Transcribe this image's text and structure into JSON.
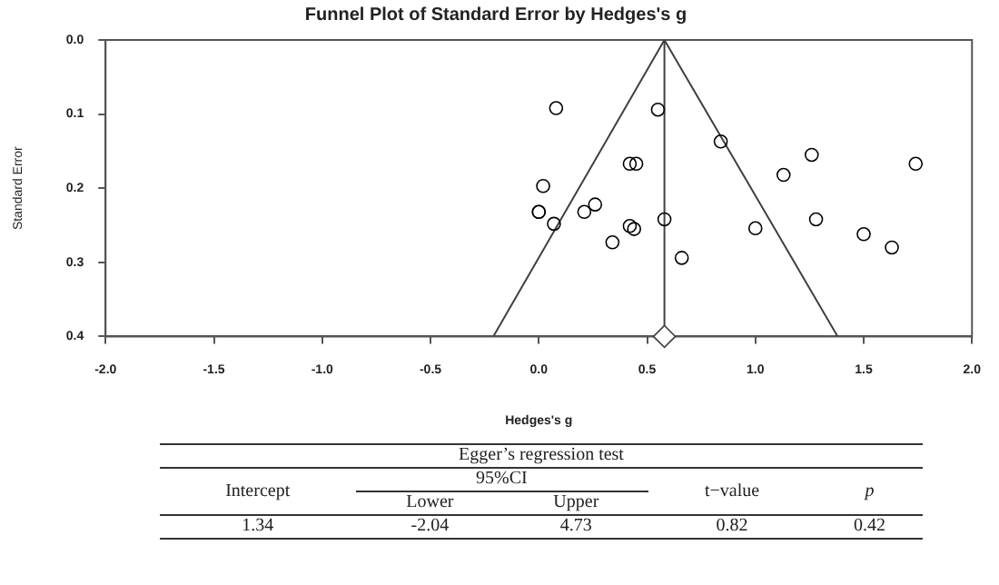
{
  "chart_data": {
    "type": "scatter",
    "title": "Funnel Plot of Standard Error by Hedges's g",
    "xlabel": "Hedges's g",
    "ylabel": "Standard Error",
    "xlim": [
      -2,
      2
    ],
    "xticks": [
      {
        "value": -2,
        "label": "-2.0"
      },
      {
        "value": -1.5,
        "label": "-1.5"
      },
      {
        "value": -1,
        "label": "-1.0"
      },
      {
        "value": -0.5,
        "label": "-0.5"
      },
      {
        "value": 0,
        "label": "0.0"
      },
      {
        "value": 0.5,
        "label": "0.5"
      },
      {
        "value": 1,
        "label": "1.0"
      },
      {
        "value": 1.5,
        "label": "1.5"
      },
      {
        "value": 2,
        "label": "2.0"
      }
    ],
    "ylim": [
      0.4,
      0
    ],
    "yticks": [
      {
        "value": 0,
        "label": "0.0"
      },
      0.1,
      0.2,
      0.3,
      0.4
    ],
    "grid": false,
    "legend": false,
    "series": [
      {
        "marker": "circle",
        "color": "#000000",
        "x": [
          0.08,
          0.55,
          0.84,
          1.26,
          1.74,
          0.42,
          0.45,
          1.13,
          0.02,
          0.0,
          0.0,
          0.21,
          0.26,
          0.07,
          0.42,
          0.44,
          0.58,
          1.0,
          1.28,
          0.34,
          1.5,
          1.63,
          0.66
        ],
        "values": [
          0.092,
          0.094,
          0.137,
          0.155,
          0.167,
          0.167,
          0.167,
          0.182,
          0.197,
          0.232,
          0.232,
          0.232,
          0.222,
          0.248,
          0.251,
          0.255,
          0.242,
          0.254,
          0.242,
          0.273,
          0.262,
          0.28,
          0.294
        ]
      },
      {
        "type": "line",
        "marker": "none",
        "line_style": "solid",
        "color": "#404040",
        "x": [
          -0.21,
          0.58,
          1.38
        ],
        "values": [
          0.4,
          0,
          0.4
        ]
      },
      {
        "type": "scatter",
        "marker": "diamond",
        "color": "#404040",
        "x": [
          0.58
        ],
        "values": [
          0.4
        ]
      }
    ],
    "ref_lines": [
      {
        "axis": "x",
        "value": 0.58,
        "color": "#404040"
      }
    ],
    "annotations": [
      "Egger’s regression test",
      "Intercept",
      "95%CI",
      "Lower",
      "Upper",
      "t−value",
      "p",
      "1.34",
      "-2.04",
      "4.73",
      "0.82",
      "0.42"
    ]
  }
}
